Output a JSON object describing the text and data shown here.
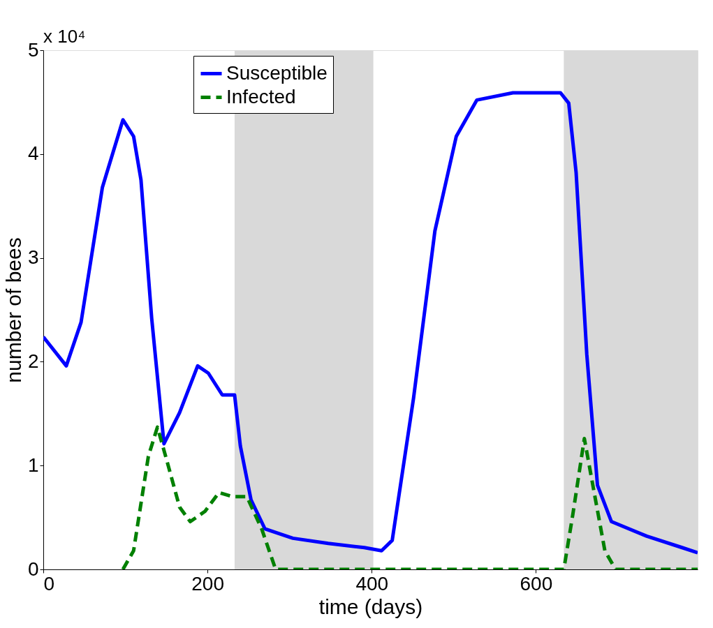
{
  "chart_data": {
    "type": "line",
    "xlabel": "time (days)",
    "ylabel": "number of bees",
    "annotations": [
      "x 10⁴"
    ],
    "xlim": [
      0,
      797
    ],
    "xticks": [
      0,
      200,
      400,
      600
    ],
    "ylim": [
      0,
      5
    ],
    "yticks": [
      0,
      1,
      2,
      3,
      4,
      5
    ],
    "grid": false,
    "legend": "top",
    "marker": "none",
    "bands": [
      {
        "axis": "x",
        "from": 233,
        "to": 402,
        "color": "#d9d9d9"
      },
      {
        "axis": "x",
        "from": 634,
        "to": 797,
        "color": "#d9d9d9"
      }
    ],
    "series": [
      {
        "name": "Susceptible",
        "color": "#0000ff",
        "line_style": "solid",
        "x": [
          0,
          28,
          46,
          72,
          97,
          110,
          119,
          132,
          147,
          166,
          188,
          201,
          218,
          233,
          240,
          253,
          270,
          304,
          347,
          391,
          412,
          425,
          451,
          477,
          503,
          528,
          572,
          630,
          640,
          649,
          662,
          675,
          692,
          735,
          778,
          797
        ],
        "values": [
          2.24,
          1.96,
          2.38,
          3.68,
          4.33,
          4.17,
          3.75,
          2.42,
          1.21,
          1.51,
          1.96,
          1.89,
          1.68,
          1.68,
          1.19,
          0.67,
          0.39,
          0.3,
          0.25,
          0.21,
          0.18,
          0.28,
          1.65,
          3.26,
          4.17,
          4.52,
          4.59,
          4.59,
          4.49,
          3.82,
          2.07,
          0.81,
          0.46,
          0.32,
          0.21,
          0.16
        ]
      },
      {
        "name": "Infected",
        "color": "#008000",
        "line_style": "dashed",
        "x": [
          97,
          110,
          128,
          139,
          149,
          166,
          179,
          197,
          214,
          231,
          248,
          266,
          283,
          634,
          645,
          659,
          671,
          684,
          697,
          797
        ],
        "values": [
          0,
          0.18,
          1.09,
          1.37,
          1.09,
          0.6,
          0.46,
          0.56,
          0.74,
          0.7,
          0.7,
          0.39,
          0,
          0,
          0.53,
          1.26,
          0.74,
          0.18,
          0,
          0
        ]
      }
    ]
  }
}
